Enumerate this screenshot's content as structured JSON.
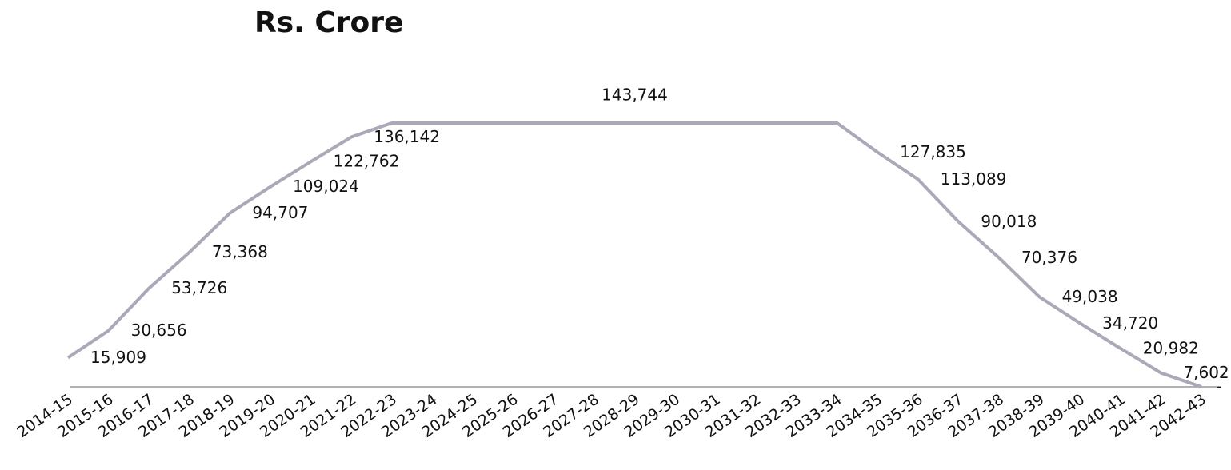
{
  "chart_data": {
    "type": "line",
    "title": "Rs. Crore",
    "categories": [
      "2014-15",
      "2015-16",
      "2016-17",
      "2017-18",
      "2018-19",
      "2019-20",
      "2020-21",
      "2021-22",
      "2022-23",
      "2023-24",
      "2024-25",
      "2025-26",
      "2026-27",
      "2027-28",
      "2028-29",
      "2029-30",
      "2030-31",
      "2031-32",
      "2032-33",
      "2033-34",
      "2034-35",
      "2035-36",
      "2036-37",
      "2037-38",
      "2038-39",
      "2039-40",
      "2040-41",
      "2041-42",
      "2042-43"
    ],
    "values": [
      15909,
      30656,
      53726,
      73368,
      94707,
      109024,
      122762,
      136142,
      143744,
      143744,
      143744,
      143744,
      143744,
      143744,
      143744,
      143744,
      143744,
      143744,
      143744,
      143744,
      127835,
      113089,
      90018,
      70376,
      49038,
      34720,
      20982,
      7602,
      0
    ],
    "value_labels": [
      "15,909",
      "30,656",
      "53,726",
      "73,368",
      "94,707",
      "109,024",
      "122,762",
      "136,142",
      null,
      null,
      null,
      null,
      null,
      null,
      "143,744",
      null,
      null,
      null,
      null,
      null,
      "127,835",
      "113,089",
      "90,018",
      "70,376",
      "49,038",
      "34,720",
      "20,982",
      "7,602",
      "-"
    ],
    "color": "#a9a9b8"
  }
}
